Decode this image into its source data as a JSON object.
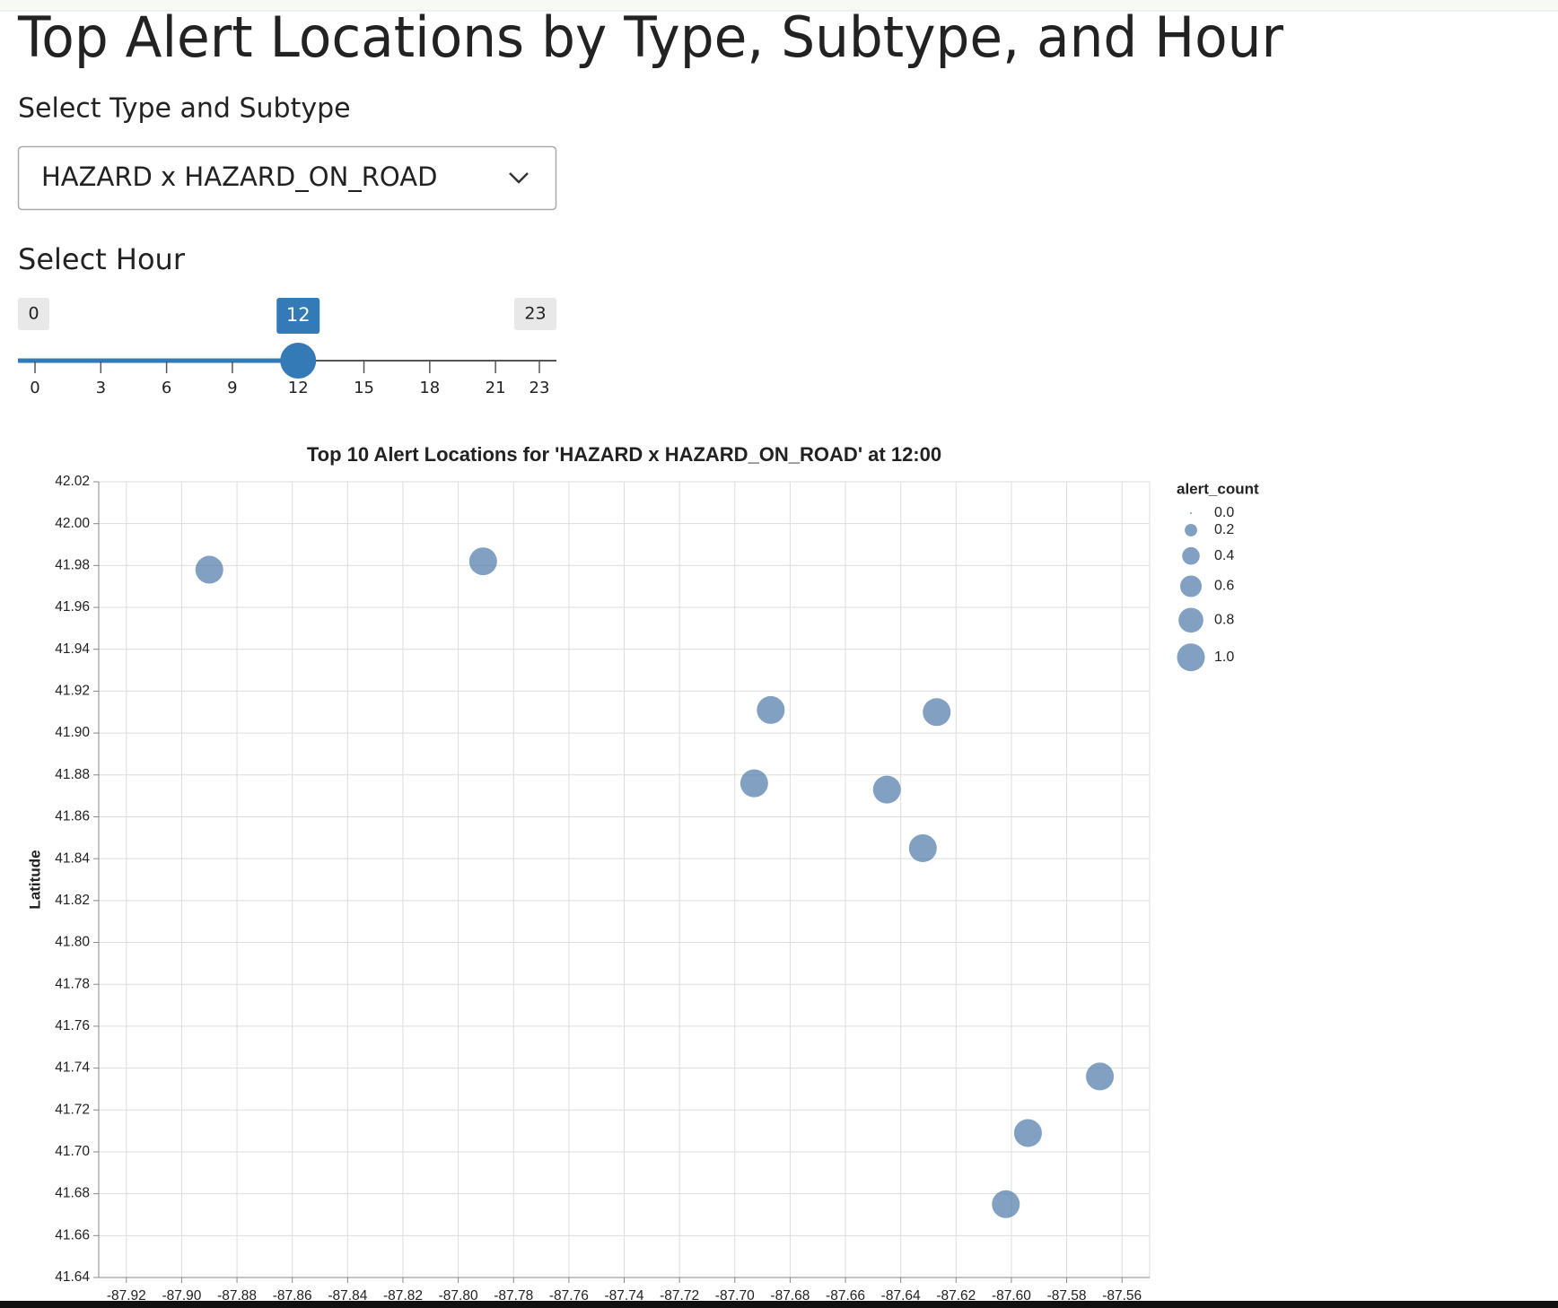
{
  "header": {
    "title": "Top Alert Locations by Type, Subtype, and Hour"
  },
  "type_select": {
    "label": "Select Type and Subtype",
    "value": "HAZARD x HAZARD_ON_ROAD"
  },
  "hour_slider": {
    "label": "Select Hour",
    "min": 0,
    "max": 23,
    "value": 12,
    "ticks": [
      0,
      3,
      6,
      9,
      12,
      15,
      18,
      21,
      23
    ]
  },
  "chart_data": {
    "type": "scatter",
    "title": "Top 10 Alert Locations for 'HAZARD x HAZARD_ON_ROAD' at 12:00",
    "y_label": "Latitude",
    "x": [
      -87.89,
      -87.791,
      -87.687,
      -87.627,
      -87.693,
      -87.645,
      -87.632,
      -87.568,
      -87.594,
      -87.602
    ],
    "values": [
      41.978,
      41.982,
      41.911,
      41.91,
      41.876,
      41.873,
      41.845,
      41.736,
      41.709,
      41.675
    ],
    "sizes": [
      1,
      1,
      1,
      1,
      1,
      1,
      1,
      1,
      1,
      1
    ],
    "color": "#4c78a8",
    "xlim": [
      -87.93,
      -87.55
    ],
    "ylim": [
      41.64,
      42.02
    ],
    "xticks": [
      -87.92,
      {
        "value": -87.9,
        "label": "-87.90"
      },
      -87.88,
      -87.86,
      -87.84,
      -87.82,
      {
        "value": -87.8,
        "label": "-87.80"
      },
      -87.78,
      -87.76,
      -87.74,
      -87.72,
      {
        "value": -87.7,
        "label": "-87.70"
      },
      -87.68,
      -87.66,
      -87.64,
      -87.62,
      {
        "value": -87.6,
        "label": "-87.60"
      },
      -87.58,
      -87.56
    ],
    "yticks": [
      41.64,
      41.66,
      41.68,
      {
        "value": 41.7,
        "label": "41.70"
      },
      41.72,
      41.74,
      41.76,
      41.78,
      {
        "value": 41.8,
        "label": "41.80"
      },
      41.82,
      41.84,
      41.86,
      41.88,
      {
        "value": 41.9,
        "label": "41.90"
      },
      41.92,
      41.94,
      41.96,
      41.98,
      {
        "value": 42,
        "label": "42.00"
      },
      42.02
    ],
    "grid": true,
    "legend": "right",
    "size_legend": {
      "title": "alert_count",
      "values": [
        {
          "value": 0,
          "label": "0.0"
        },
        {
          "value": 0.2,
          "label": "0.2"
        },
        {
          "value": 0.4,
          "label": "0.4"
        },
        {
          "value": 0.6,
          "label": "0.6"
        },
        {
          "value": 0.8,
          "label": "0.8"
        },
        {
          "value": 1,
          "label": "1.0"
        }
      ]
    }
  }
}
